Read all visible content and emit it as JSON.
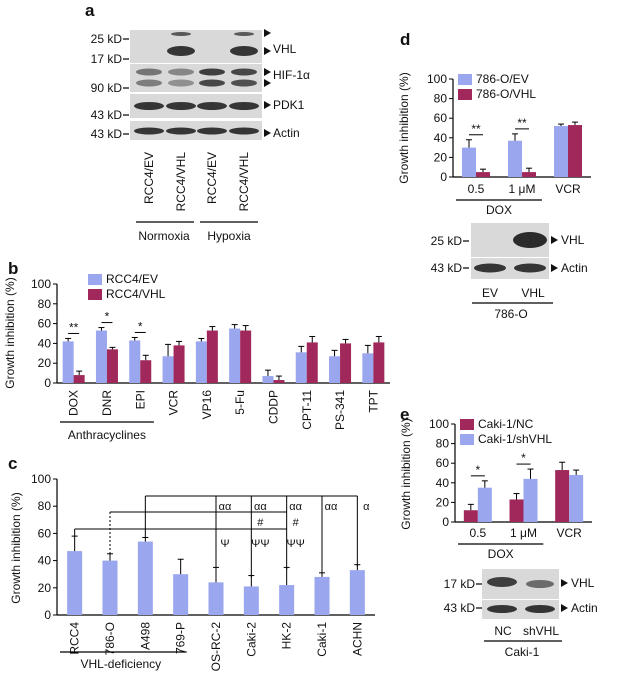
{
  "colors": {
    "blue": "#9aa6ee",
    "maroon": "#a0285a",
    "blot_bg": "#d9d9d9",
    "blot_band": "#222222"
  },
  "chart_data": [
    {
      "panel": "a",
      "type": "blot",
      "size_labels": [
        "25 kD",
        "17 kD",
        "90 kD",
        "43 kD",
        "43 kD"
      ],
      "protein_labels": [
        "VHL",
        "HIF-1α",
        "PDK1",
        "Actin"
      ],
      "lane_labels": [
        "RCC4/EV",
        "RCC4/VHL",
        "RCC4/EV",
        "RCC4/VHL"
      ],
      "groups": [
        "Normoxia",
        "Hypoxia"
      ]
    },
    {
      "panel": "b",
      "type": "bar",
      "ylabel": "Growth inhibition (%)",
      "ylim": [
        0,
        100
      ],
      "yticks": [
        0,
        20,
        40,
        60,
        80,
        100
      ],
      "categories": [
        "DOX",
        "DNR",
        "EPI",
        "VCR",
        "VP16",
        "5-Fu",
        "CDDP",
        "CPT-11",
        "PS-341",
        "TPT"
      ],
      "series": [
        {
          "name": "RCC4/EV",
          "values": [
            42,
            53,
            43,
            27,
            42,
            55,
            7,
            31,
            27,
            30
          ],
          "errors": [
            3,
            3,
            3,
            12,
            3,
            4,
            6,
            6,
            6,
            8
          ]
        },
        {
          "name": "RCC4/VHL",
          "values": [
            8,
            34,
            23,
            38,
            53,
            53,
            3,
            41,
            40,
            41
          ],
          "errors": [
            4,
            2,
            5,
            4,
            4,
            5,
            4,
            6,
            4,
            6
          ]
        }
      ],
      "significance": [
        "**",
        "*",
        "*"
      ],
      "group_label": "Anthracyclines"
    },
    {
      "panel": "c",
      "type": "bar",
      "ylabel": "Growth inhibition (%)",
      "ylim": [
        0,
        100
      ],
      "yticks": [
        0,
        20,
        40,
        60,
        80,
        100
      ],
      "categories": [
        "RCC4",
        "786-O",
        "A498",
        "769-P",
        "OS-RC-2",
        "Caki-2",
        "HK-2",
        "Caki-1",
        "ACHN"
      ],
      "values": [
        47,
        40,
        54,
        30,
        24,
        21,
        22,
        28,
        33
      ],
      "errors": [
        11,
        5,
        3,
        11,
        11,
        8,
        13,
        3,
        4
      ],
      "annotations": [
        "αα",
        "αα",
        "αα",
        "αα",
        "α",
        "#",
        "#",
        "Ψ",
        "ΨΨ",
        "ΨΨ"
      ],
      "group_label": "VHL-deficiency"
    },
    {
      "panel": "d",
      "type": "bar",
      "ylabel": "Growth inhibition (%)",
      "ylim": [
        0,
        100
      ],
      "yticks": [
        0,
        20,
        40,
        60,
        80,
        100
      ],
      "categories": [
        "0.5",
        "1 μM",
        "VCR"
      ],
      "series": [
        {
          "name": "786-O/EV",
          "values": [
            30,
            37,
            52
          ],
          "errors": [
            8,
            7,
            2
          ]
        },
        {
          "name": "786-O/VHL",
          "values": [
            5,
            5,
            53
          ],
          "errors": [
            3,
            4,
            3
          ]
        }
      ],
      "significance": [
        "**",
        "**"
      ],
      "group_label": "DOX",
      "blot": {
        "size_labels": [
          "25 kD",
          "43 kD"
        ],
        "protein_labels": [
          "VHL",
          "Actin"
        ],
        "lanes": [
          "EV",
          "VHL"
        ],
        "group": "786-O"
      }
    },
    {
      "panel": "e",
      "type": "bar",
      "ylabel": "Growth inhibition (%)",
      "ylim": [
        0,
        100
      ],
      "yticks": [
        0,
        20,
        40,
        60,
        80,
        100
      ],
      "categories": [
        "0.5",
        "1 μM",
        "VCR"
      ],
      "series": [
        {
          "name": "Caki-1/NC",
          "values": [
            12,
            23,
            53
          ],
          "errors": [
            6,
            6,
            8
          ]
        },
        {
          "name": "Caki-1/shVHL",
          "values": [
            35,
            44,
            48
          ],
          "errors": [
            7,
            10,
            5
          ]
        }
      ],
      "significance": [
        "*",
        "*"
      ],
      "group_label": "DOX",
      "blot": {
        "size_labels": [
          "17 kD",
          "43 kD"
        ],
        "protein_labels": [
          "VHL",
          "Actin"
        ],
        "lanes": [
          "NC",
          "shVHL"
        ],
        "group": "Caki-1"
      }
    }
  ]
}
